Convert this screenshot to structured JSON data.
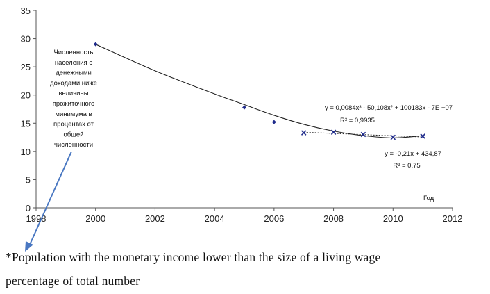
{
  "chart_data": {
    "type": "scatter",
    "xlim": [
      1998,
      2012
    ],
    "ylim": [
      0,
      35
    ],
    "x_ticks": [
      1998,
      2000,
      2002,
      2004,
      2006,
      2008,
      2010,
      2012
    ],
    "y_ticks": [
      0,
      5,
      10,
      15,
      20,
      25,
      30,
      35
    ],
    "xlabel": "Год",
    "grid": false,
    "series": [
      {
        "marker": "diamond",
        "color": "#1f2b8c",
        "x": [
          2000,
          2005,
          2006
        ],
        "y": [
          29.0,
          17.8,
          15.2
        ]
      },
      {
        "marker": "x",
        "color": "#1f2b8c",
        "x": [
          2007,
          2008,
          2009,
          2010,
          2011
        ],
        "y": [
          13.3,
          13.4,
          13.0,
          12.5,
          12.7
        ]
      }
    ],
    "trendlines": [
      {
        "kind": "polynomial-3",
        "style": "solid",
        "color": "#222222",
        "x_range": [
          2000,
          2011
        ],
        "points": [
          [
            2000,
            29.0
          ],
          [
            2002,
            24.3
          ],
          [
            2004,
            20.2
          ],
          [
            2005,
            18.3
          ],
          [
            2006,
            16.4
          ],
          [
            2007,
            14.8
          ],
          [
            2008,
            13.6
          ],
          [
            2009,
            12.8
          ],
          [
            2010,
            12.4
          ],
          [
            2011,
            12.8
          ]
        ]
      },
      {
        "kind": "linear",
        "style": "dotted",
        "color": "#222222",
        "x_range": [
          2007,
          2011
        ],
        "slope": -0.21,
        "intercept": 434.87
      }
    ],
    "annotations": {
      "equation_poly": "y = 0,0084x³ - 50,108x² + 100183x - 7E +07",
      "r2_poly": "R² = 0,9935",
      "equation_linear": "y = -0,21x + 434,87",
      "r2_linear": "R² = 0,75",
      "note": [
        "Численность",
        "населения с",
        "денежными",
        "доходами ниже",
        "величины",
        "прожиточного",
        "минимума  в",
        "процентах от",
        "общей",
        "численности"
      ]
    }
  },
  "footnote": {
    "line1": "*Population with the monetary income lower than the size of a living wage",
    "line2": "percentage of total number"
  },
  "colors": {
    "arrow": "#4a78c2",
    "markers": "#1f2b8c",
    "axis": "#555555"
  }
}
